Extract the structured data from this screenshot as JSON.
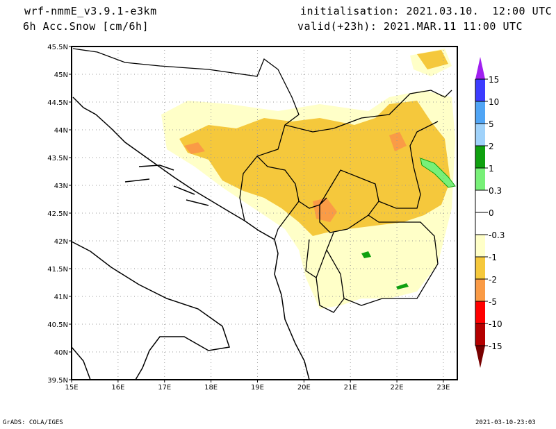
{
  "header": {
    "model": "wrf-nmmE_v3.9.1-e3km",
    "variable": "6h Acc.Snow [cm/6h]",
    "initialisation": "initialisation: 2021.03.10.  12:00 UTC",
    "valid": "valid(+23h): 2021.MAR.11 11:00 UTC"
  },
  "map": {
    "lat_labels": [
      "45.5N",
      "45N",
      "44.5N",
      "44N",
      "43.5N",
      "43N",
      "42.5N",
      "42N",
      "41.5N",
      "41N",
      "40.5N",
      "40N",
      "39.5N"
    ],
    "lon_labels": [
      "15E",
      "16E",
      "17E",
      "18E",
      "19E",
      "20E",
      "21E",
      "22E",
      "23E"
    ],
    "lat_range": [
      39.5,
      45.5
    ],
    "lon_range": [
      15,
      23.3
    ]
  },
  "legend": {
    "labels": [
      "15",
      "10",
      "5",
      "2",
      "1",
      "0.3",
      "0",
      "-0.3",
      "-1",
      "-2",
      "-5",
      "-10",
      "-15"
    ],
    "colors": [
      "#a020f0",
      "#3c3cff",
      "#50a5f5",
      "#a0d2fa",
      "#0fa00f",
      "#78f078",
      "#ffffff",
      "#ffffff",
      "#ffffc8",
      "#f5c83c",
      "#fa9b46",
      "#ff0000",
      "#b40000",
      "#780000"
    ]
  },
  "footer": {
    "left": "GrADS: COLA/IGES",
    "right": "2021-03-10-23:03"
  }
}
